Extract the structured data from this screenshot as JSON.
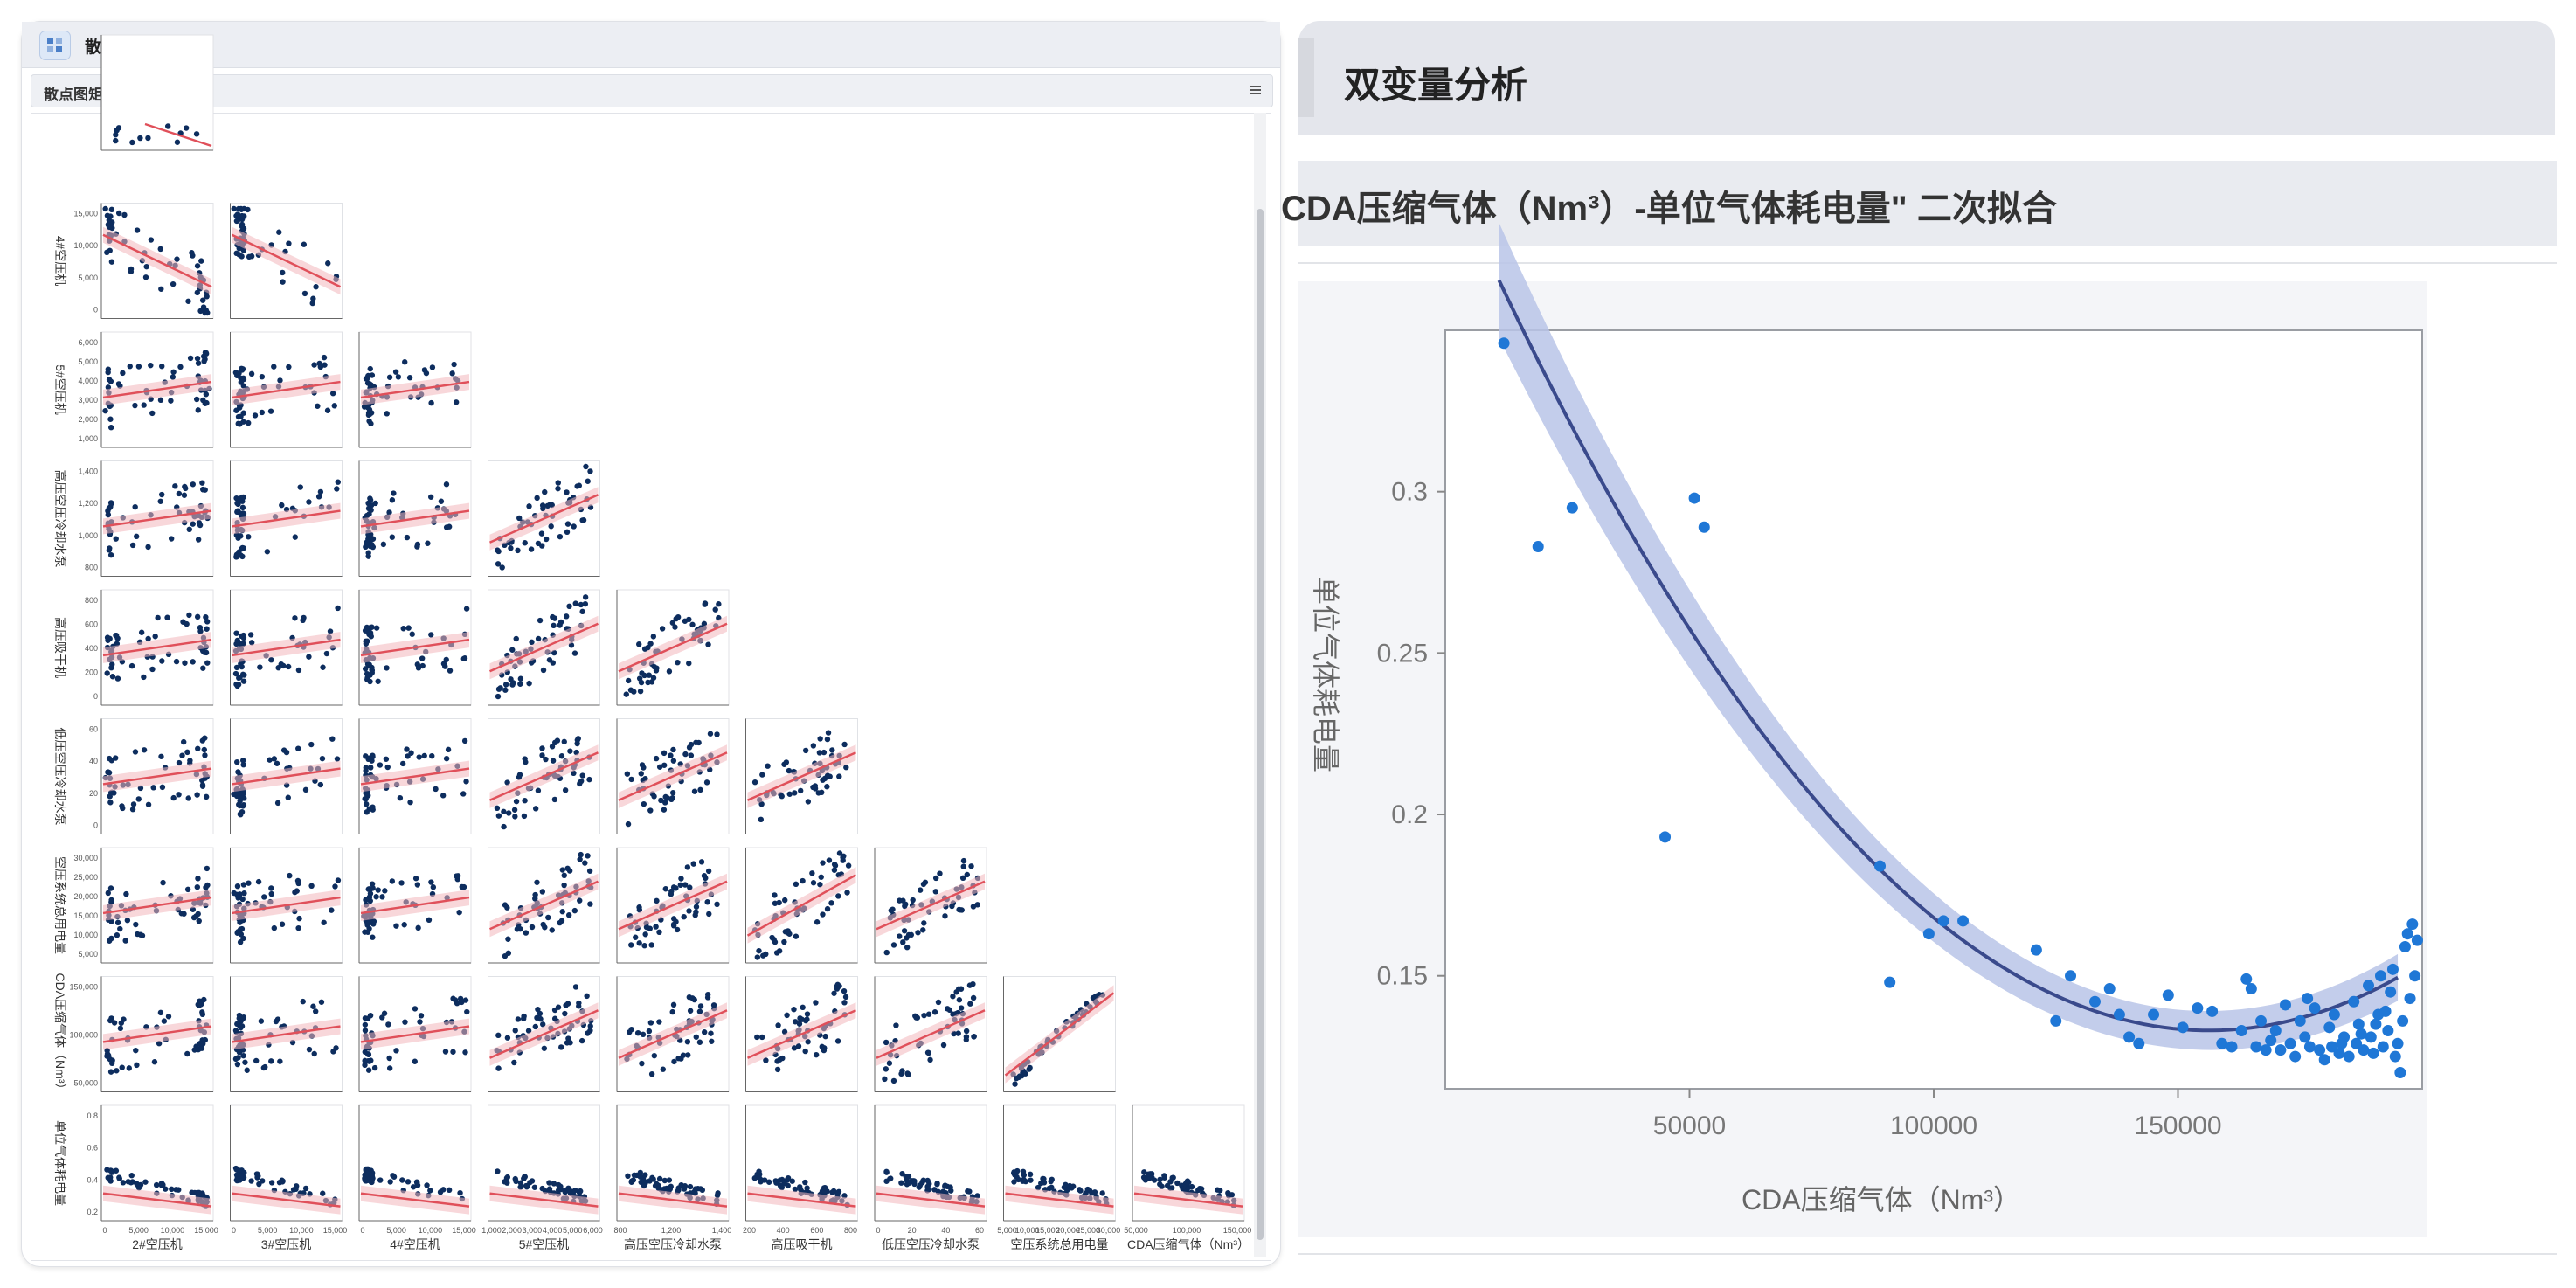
{
  "left_window": {
    "title": "散点图矩阵",
    "panel_title": "散点图矩阵"
  },
  "right_panel": {
    "section_title": "双变量分析",
    "chart_title": "CDA压缩气体（Nm³）-单位气体耗电量\" 二次拟合"
  },
  "colors": {
    "point_dark": "#0d2d5e",
    "fit_red": "#e0505a",
    "band_red": "#f2b6bb",
    "point_blue": "#1f77d6",
    "curve_navy": "#3a4a8c",
    "band_blue": "#b9c4e8"
  },
  "matrix": {
    "variables": [
      "2#空压机",
      "3#空压机",
      "4#空压机",
      "5#空压机",
      "高压空压冷却水泵",
      "高压吸干机",
      "低压空压冷却水泵",
      "空压系统总用电量",
      "CDA压缩气体（Nm³）",
      "单位气体耗电量"
    ],
    "row_labels": [
      "4#空压机",
      "5#空压机",
      "高压空压冷却水泵",
      "高压吸干机",
      "低压空压冷却水泵",
      "空压系统总用电量",
      "CDA压缩气体（Nm³）",
      "单位气体耗电量"
    ],
    "col_labels": [
      "2#空压机",
      "3#空压机",
      "4#空压机",
      "5#空压机",
      "高压空压冷却水泵",
      "高压吸干机",
      "低压空压冷却水泵",
      "空压系统总用电量",
      "CDA压缩气体（Nm³）"
    ],
    "row_ticks": [
      [
        "0",
        "5,000",
        "10,000",
        "15,000"
      ],
      [
        "1,000",
        "2,000",
        "3,000",
        "4,000",
        "5,000",
        "6,000"
      ],
      [
        "800",
        "1,000",
        "1,200",
        "1,400"
      ],
      [
        "0",
        "200",
        "400",
        "600",
        "800"
      ],
      [
        "0",
        "20",
        "40",
        "60"
      ],
      [
        "5,000",
        "10,000",
        "15,000",
        "20,000",
        "25,000",
        "30,000"
      ],
      [
        "50,000",
        "100,000",
        "150,000"
      ],
      [
        "0.2",
        "0.4",
        "0.6",
        "0.8"
      ]
    ],
    "col_ticks": [
      [
        "0",
        "5,000",
        "10,000",
        "15,000"
      ],
      [
        "0",
        "5,000",
        "10,000",
        "15,000"
      ],
      [
        "0",
        "5,000",
        "10,000",
        "15,000"
      ],
      [
        "1,000",
        "2,000",
        "3,000",
        "4,000",
        "5,000",
        "6,000"
      ],
      [
        "800",
        "1,200",
        "1,400"
      ],
      [
        "200",
        "400",
        "600",
        "800"
      ],
      [
        "0",
        "20",
        "40",
        "60"
      ],
      [
        "5,000",
        "10,000",
        "15,000",
        "20,000",
        "25,000",
        "30,000"
      ],
      [
        "50,000",
        "100,000",
        "150,000"
      ]
    ]
  },
  "chart_data": {
    "type": "scatter",
    "title": "CDA压缩气体（Nm³）-单位气体耗电量\" 二次拟合",
    "xlabel": "CDA压缩气体（Nm³）",
    "ylabel": "单位气体耗电量",
    "xlim": [
      0,
      200000
    ],
    "ylim": [
      0.115,
      0.35
    ],
    "x_ticks": [
      50000,
      100000,
      150000
    ],
    "x_tick_labels": [
      "50000",
      "100000",
      "150000"
    ],
    "y_ticks": [
      0.15,
      0.2,
      0.25,
      0.3
    ],
    "y_tick_labels": [
      "0.15",
      "0.2",
      "0.25",
      "0.3"
    ],
    "grid": false,
    "fit": {
      "type": "quadratic",
      "a": 1.1e-11,
      "b": -3.44e-06,
      "c": 0.402,
      "x_range": [
        11000,
        196000
      ]
    },
    "points": [
      [
        12000,
        0.346
      ],
      [
        19000,
        0.283
      ],
      [
        26000,
        0.295
      ],
      [
        45000,
        0.193
      ],
      [
        51000,
        0.298
      ],
      [
        53000,
        0.289
      ],
      [
        89000,
        0.184
      ],
      [
        91000,
        0.148
      ],
      [
        99000,
        0.163
      ],
      [
        102000,
        0.167
      ],
      [
        106000,
        0.167
      ],
      [
        121000,
        0.158
      ],
      [
        125000,
        0.136
      ],
      [
        128000,
        0.15
      ],
      [
        133000,
        0.142
      ],
      [
        136000,
        0.146
      ],
      [
        138000,
        0.138
      ],
      [
        140000,
        0.131
      ],
      [
        142000,
        0.129
      ],
      [
        145000,
        0.138
      ],
      [
        148000,
        0.144
      ],
      [
        151000,
        0.134
      ],
      [
        154000,
        0.14
      ],
      [
        157000,
        0.139
      ],
      [
        159000,
        0.129
      ],
      [
        161000,
        0.128
      ],
      [
        164000,
        0.149
      ],
      [
        165000,
        0.146
      ],
      [
        167000,
        0.136
      ],
      [
        168000,
        0.127
      ],
      [
        170000,
        0.133
      ],
      [
        171000,
        0.127
      ],
      [
        172000,
        0.141
      ],
      [
        173000,
        0.129
      ],
      [
        174000,
        0.125
      ],
      [
        175000,
        0.136
      ],
      [
        176000,
        0.131
      ],
      [
        177000,
        0.128
      ],
      [
        178000,
        0.14
      ],
      [
        179000,
        0.127
      ],
      [
        180000,
        0.124
      ],
      [
        181000,
        0.134
      ],
      [
        181500,
        0.128
      ],
      [
        182000,
        0.138
      ],
      [
        183000,
        0.126
      ],
      [
        184000,
        0.131
      ],
      [
        185000,
        0.125
      ],
      [
        186000,
        0.142
      ],
      [
        186500,
        0.129
      ],
      [
        187000,
        0.135
      ],
      [
        188000,
        0.127
      ],
      [
        189000,
        0.147
      ],
      [
        189500,
        0.131
      ],
      [
        190000,
        0.126
      ],
      [
        191000,
        0.138
      ],
      [
        191500,
        0.15
      ],
      [
        192000,
        0.128
      ],
      [
        193000,
        0.133
      ],
      [
        193500,
        0.145
      ],
      [
        194000,
        0.152
      ],
      [
        194500,
        0.125
      ],
      [
        195000,
        0.129
      ],
      [
        195500,
        0.12
      ],
      [
        196000,
        0.136
      ],
      [
        196500,
        0.159
      ],
      [
        197000,
        0.163
      ],
      [
        197500,
        0.143
      ],
      [
        198000,
        0.166
      ],
      [
        198500,
        0.15
      ],
      [
        199000,
        0.161
      ],
      [
        176500,
        0.143
      ],
      [
        183500,
        0.129
      ],
      [
        187500,
        0.132
      ],
      [
        190500,
        0.135
      ],
      [
        192500,
        0.139
      ],
      [
        169000,
        0.13
      ],
      [
        166000,
        0.128
      ],
      [
        163000,
        0.133
      ]
    ]
  }
}
